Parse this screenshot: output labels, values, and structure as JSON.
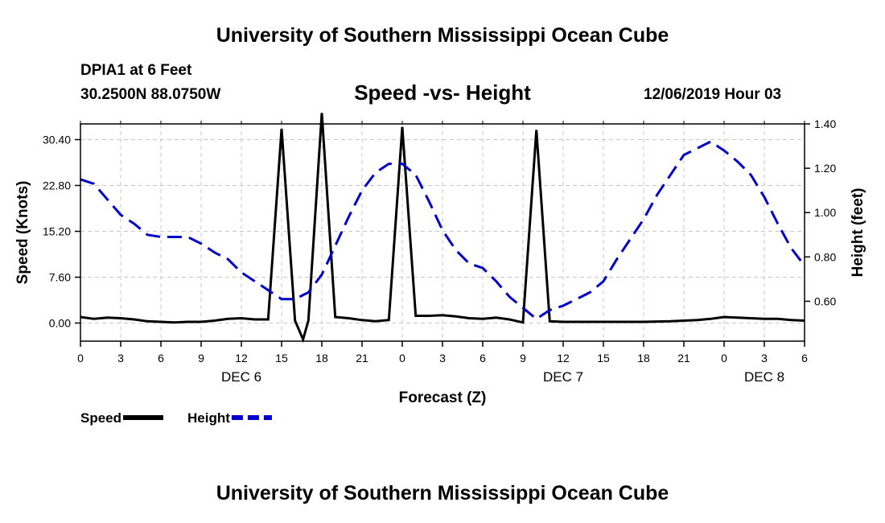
{
  "header": {
    "title": "University of Southern Mississippi Ocean Cube",
    "station": "DPIA1 at 6 Feet",
    "coordinates": "30.2500N 88.0750W",
    "subtitle": "Speed -vs- Height",
    "datetime": "12/06/2019 Hour 03"
  },
  "footer": {
    "title": "University of Southern Mississippi Ocean Cube"
  },
  "chart_data": {
    "type": "line",
    "xlabel": "Forecast (Z)",
    "x_range_hours": [
      0,
      54
    ],
    "x_ticks": [
      {
        "h": 0,
        "label": "0"
      },
      {
        "h": 3,
        "label": "3"
      },
      {
        "h": 6,
        "label": "6"
      },
      {
        "h": 9,
        "label": "9"
      },
      {
        "h": 12,
        "label": "12"
      },
      {
        "h": 15,
        "label": "15"
      },
      {
        "h": 18,
        "label": "18"
      },
      {
        "h": 21,
        "label": "21"
      },
      {
        "h": 24,
        "label": "0"
      },
      {
        "h": 27,
        "label": "3"
      },
      {
        "h": 30,
        "label": "6"
      },
      {
        "h": 33,
        "label": "9"
      },
      {
        "h": 36,
        "label": "12"
      },
      {
        "h": 39,
        "label": "15"
      },
      {
        "h": 42,
        "label": "18"
      },
      {
        "h": 45,
        "label": "21"
      },
      {
        "h": 48,
        "label": "0"
      },
      {
        "h": 51,
        "label": "3"
      },
      {
        "h": 54,
        "label": "6"
      }
    ],
    "date_labels": [
      {
        "h": 12,
        "label": "DEC 6"
      },
      {
        "h": 36,
        "label": "DEC 7"
      },
      {
        "h": 51,
        "label": "DEC 8"
      }
    ],
    "left_axis": {
      "label": "Speed (Knots)",
      "range": [
        -3,
        33
      ],
      "ticks": [
        "0.00",
        "7.60",
        "15.20",
        "22.80",
        "30.40"
      ]
    },
    "right_axis": {
      "label": "Height (feet)",
      "range": [
        0.42,
        1.4
      ],
      "ticks": [
        "0.60",
        "0.80",
        "1.00",
        "1.20",
        "1.40"
      ]
    },
    "series": [
      {
        "name": "Speed",
        "axis": "left",
        "color": "#000000",
        "dash": "solid",
        "points": [
          [
            0,
            1.0
          ],
          [
            1,
            0.7
          ],
          [
            2,
            0.9
          ],
          [
            3,
            0.8
          ],
          [
            4,
            0.6
          ],
          [
            5,
            0.3
          ],
          [
            6,
            0.2
          ],
          [
            7,
            0.1
          ],
          [
            8,
            0.2
          ],
          [
            9,
            0.2
          ],
          [
            10,
            0.4
          ],
          [
            11,
            0.7
          ],
          [
            12,
            0.8
          ],
          [
            13,
            0.6
          ],
          [
            14,
            0.6
          ],
          [
            15,
            32.2
          ],
          [
            16,
            0.4
          ],
          [
            16.6,
            -2.7
          ],
          [
            17,
            0.4
          ],
          [
            18,
            34.8
          ],
          [
            19,
            1.0
          ],
          [
            20,
            0.8
          ],
          [
            21,
            0.5
          ],
          [
            22,
            0.3
          ],
          [
            23,
            0.5
          ],
          [
            24,
            32.5
          ],
          [
            25,
            1.2
          ],
          [
            26,
            1.2
          ],
          [
            27,
            1.3
          ],
          [
            28,
            1.1
          ],
          [
            29,
            0.8
          ],
          [
            30,
            0.7
          ],
          [
            31,
            0.9
          ],
          [
            32,
            0.6
          ],
          [
            33,
            0.1
          ],
          [
            34,
            32.0
          ],
          [
            35,
            0.3
          ],
          [
            36,
            0.2
          ],
          [
            38,
            0.2
          ],
          [
            40,
            0.2
          ],
          [
            42,
            0.2
          ],
          [
            44,
            0.3
          ],
          [
            46,
            0.5
          ],
          [
            47,
            0.7
          ],
          [
            48,
            1.0
          ],
          [
            49,
            0.9
          ],
          [
            50,
            0.8
          ],
          [
            51,
            0.7
          ],
          [
            52,
            0.7
          ],
          [
            53,
            0.5
          ],
          [
            54,
            0.4
          ]
        ]
      },
      {
        "name": "Height",
        "axis": "right",
        "color": "#0000cc",
        "dash": "dashed",
        "points": [
          [
            0,
            1.15
          ],
          [
            1,
            1.13
          ],
          [
            2,
            1.06
          ],
          [
            3,
            0.99
          ],
          [
            4,
            0.95
          ],
          [
            5,
            0.9
          ],
          [
            6,
            0.89
          ],
          [
            7,
            0.89
          ],
          [
            8,
            0.89
          ],
          [
            9,
            0.86
          ],
          [
            10,
            0.82
          ],
          [
            11,
            0.79
          ],
          [
            12,
            0.73
          ],
          [
            13,
            0.69
          ],
          [
            14,
            0.65
          ],
          [
            15,
            0.61
          ],
          [
            16,
            0.61
          ],
          [
            17,
            0.64
          ],
          [
            18,
            0.72
          ],
          [
            19,
            0.85
          ],
          [
            20,
            0.98
          ],
          [
            21,
            1.1
          ],
          [
            22,
            1.18
          ],
          [
            23,
            1.22
          ],
          [
            24,
            1.22
          ],
          [
            25,
            1.17
          ],
          [
            26,
            1.05
          ],
          [
            27,
            0.92
          ],
          [
            28,
            0.83
          ],
          [
            29,
            0.77
          ],
          [
            30,
            0.75
          ],
          [
            31,
            0.69
          ],
          [
            32,
            0.62
          ],
          [
            33,
            0.57
          ],
          [
            34,
            0.52
          ],
          [
            35,
            0.56
          ],
          [
            36,
            0.58
          ],
          [
            37,
            0.61
          ],
          [
            38,
            0.64
          ],
          [
            39,
            0.69
          ],
          [
            40,
            0.79
          ],
          [
            41,
            0.88
          ],
          [
            42,
            0.97
          ],
          [
            43,
            1.08
          ],
          [
            44,
            1.17
          ],
          [
            45,
            1.26
          ],
          [
            46,
            1.29
          ],
          [
            47,
            1.32
          ],
          [
            48,
            1.28
          ],
          [
            49,
            1.23
          ],
          [
            50,
            1.17
          ],
          [
            51,
            1.07
          ],
          [
            52,
            0.95
          ],
          [
            53,
            0.84
          ],
          [
            54,
            0.76
          ]
        ]
      }
    ],
    "legend": [
      {
        "name": "Speed",
        "color": "#000000",
        "dash": "solid"
      },
      {
        "name": "Height",
        "color": "#0000cc",
        "dash": "dashed"
      }
    ],
    "legend_position": "bottom-left",
    "grid": true
  }
}
